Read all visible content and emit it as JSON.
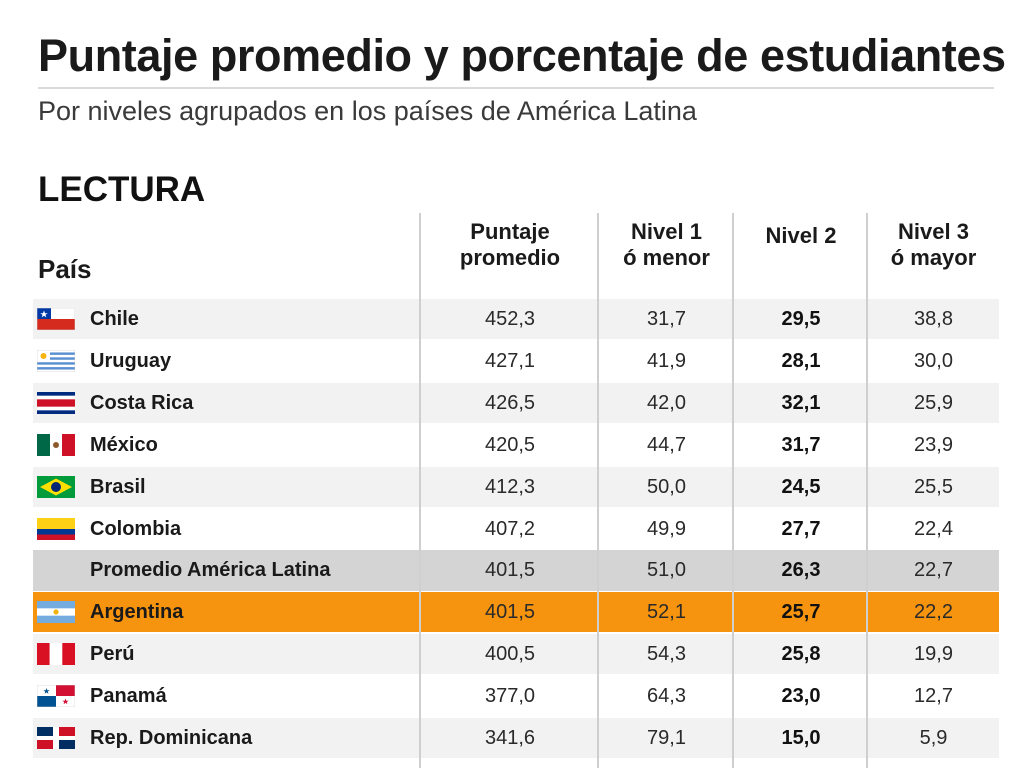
{
  "header": {
    "title": "Puntaje promedio y porcentaje de estudiantes",
    "subtitle": "Por niveles agrupados en los países de América Latina",
    "section": "LECTURA"
  },
  "table": {
    "columns": {
      "country": "País",
      "score_line1": "Puntaje",
      "score_line2": "promedio",
      "level1_line1": "Nivel 1",
      "level1_line2": "ó menor",
      "level2": "Nivel 2",
      "level3_line1": "Nivel 3",
      "level3_line2": "ó mayor"
    },
    "highlight_color": "#f7940f",
    "average_color": "#d4d4d4"
  },
  "chart_data": {
    "type": "table",
    "title": "Puntaje promedio y porcentaje de estudiantes",
    "subtitle": "Por niveles agrupados en los países de América Latina",
    "section": "LECTURA",
    "columns": [
      "País",
      "Puntaje promedio",
      "Nivel 1 ó menor",
      "Nivel 2",
      "Nivel 3 ó mayor"
    ],
    "rows": [
      {
        "country": "Chile",
        "flag": "chile-flag",
        "score": "452,3",
        "level1": "31,7",
        "level2": "29,5",
        "level3": "38,8"
      },
      {
        "country": "Uruguay",
        "flag": "uruguay-flag",
        "score": "427,1",
        "level1": "41,9",
        "level2": "28,1",
        "level3": "30,0"
      },
      {
        "country": "Costa Rica",
        "flag": "costa-rica-flag",
        "score": "426,5",
        "level1": "42,0",
        "level2": "32,1",
        "level3": "25,9"
      },
      {
        "country": "México",
        "flag": "mexico-flag",
        "score": "420,5",
        "level1": "44,7",
        "level2": "31,7",
        "level3": "23,9"
      },
      {
        "country": "Brasil",
        "flag": "brazil-flag",
        "score": "412,3",
        "level1": "50,0",
        "level2": "24,5",
        "level3": "25,5"
      },
      {
        "country": "Colombia",
        "flag": "colombia-flag",
        "score": "407,2",
        "level1": "49,9",
        "level2": "27,7",
        "level3": "22,4"
      },
      {
        "country": "Promedio América Latina",
        "flag": "",
        "score": "401,5",
        "level1": "51,0",
        "level2": "26,3",
        "level3": "22,7",
        "style": "avg"
      },
      {
        "country": "Argentina",
        "flag": "argentina-flag",
        "score": "401,5",
        "level1": "52,1",
        "level2": "25,7",
        "level3": "22,2",
        "style": "hl"
      },
      {
        "country": "Perú",
        "flag": "peru-flag",
        "score": "400,5",
        "level1": "54,3",
        "level2": "25,8",
        "level3": "19,9"
      },
      {
        "country": "Panamá",
        "flag": "panama-flag",
        "score": "377,0",
        "level1": "64,3",
        "level2": "23,0",
        "level3": "12,7"
      },
      {
        "country": "Rep. Dominicana",
        "flag": "dominican-republic-flag",
        "score": "341,6",
        "level1": "79,1",
        "level2": "15,0",
        "level3": "5,9"
      }
    ]
  }
}
